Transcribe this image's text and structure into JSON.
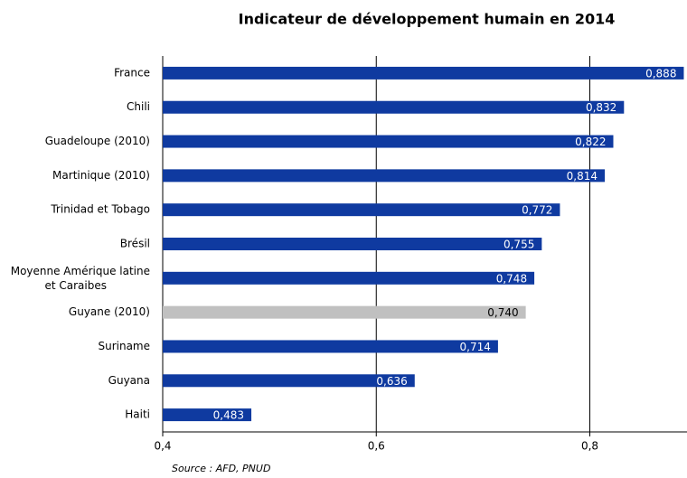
{
  "chart_data": {
    "type": "barh",
    "title": "Indicateur de développement humain en 2014",
    "categories": [
      "France",
      "Chili",
      "Guadeloupe (2010)",
      "Martinique (2010)",
      "Trinidad et Tobago",
      "Brésil",
      "Moyenne Amérique latine et Caraibes",
      "Guyane (2010)",
      "Suriname",
      "Guyana",
      "Haiti"
    ],
    "values": [
      0.888,
      0.832,
      0.822,
      0.814,
      0.772,
      0.755,
      0.748,
      0.74,
      0.714,
      0.636,
      0.483
    ],
    "value_labels": [
      "0,888",
      "0,832",
      "0,822",
      "0,814",
      "0,772",
      "0,755",
      "0,748",
      "0,740",
      "0,714",
      "0,636",
      "0,483"
    ],
    "colors": [
      "#0f3aa0",
      "#0f3aa0",
      "#0f3aa0",
      "#0f3aa0",
      "#0f3aa0",
      "#0f3aa0",
      "#0f3aa0",
      "#c0c0c0",
      "#0f3aa0",
      "#0f3aa0",
      "#0f3aa0"
    ],
    "xlim": [
      0.4,
      0.891
    ],
    "xticks": [
      {
        "value": 0.4,
        "label": "0,4"
      },
      {
        "value": 0.6,
        "label": "0,6"
      },
      {
        "value": 0.8,
        "label": "0,8"
      }
    ],
    "grid": true,
    "source": "Source : AFD, PNUD"
  }
}
